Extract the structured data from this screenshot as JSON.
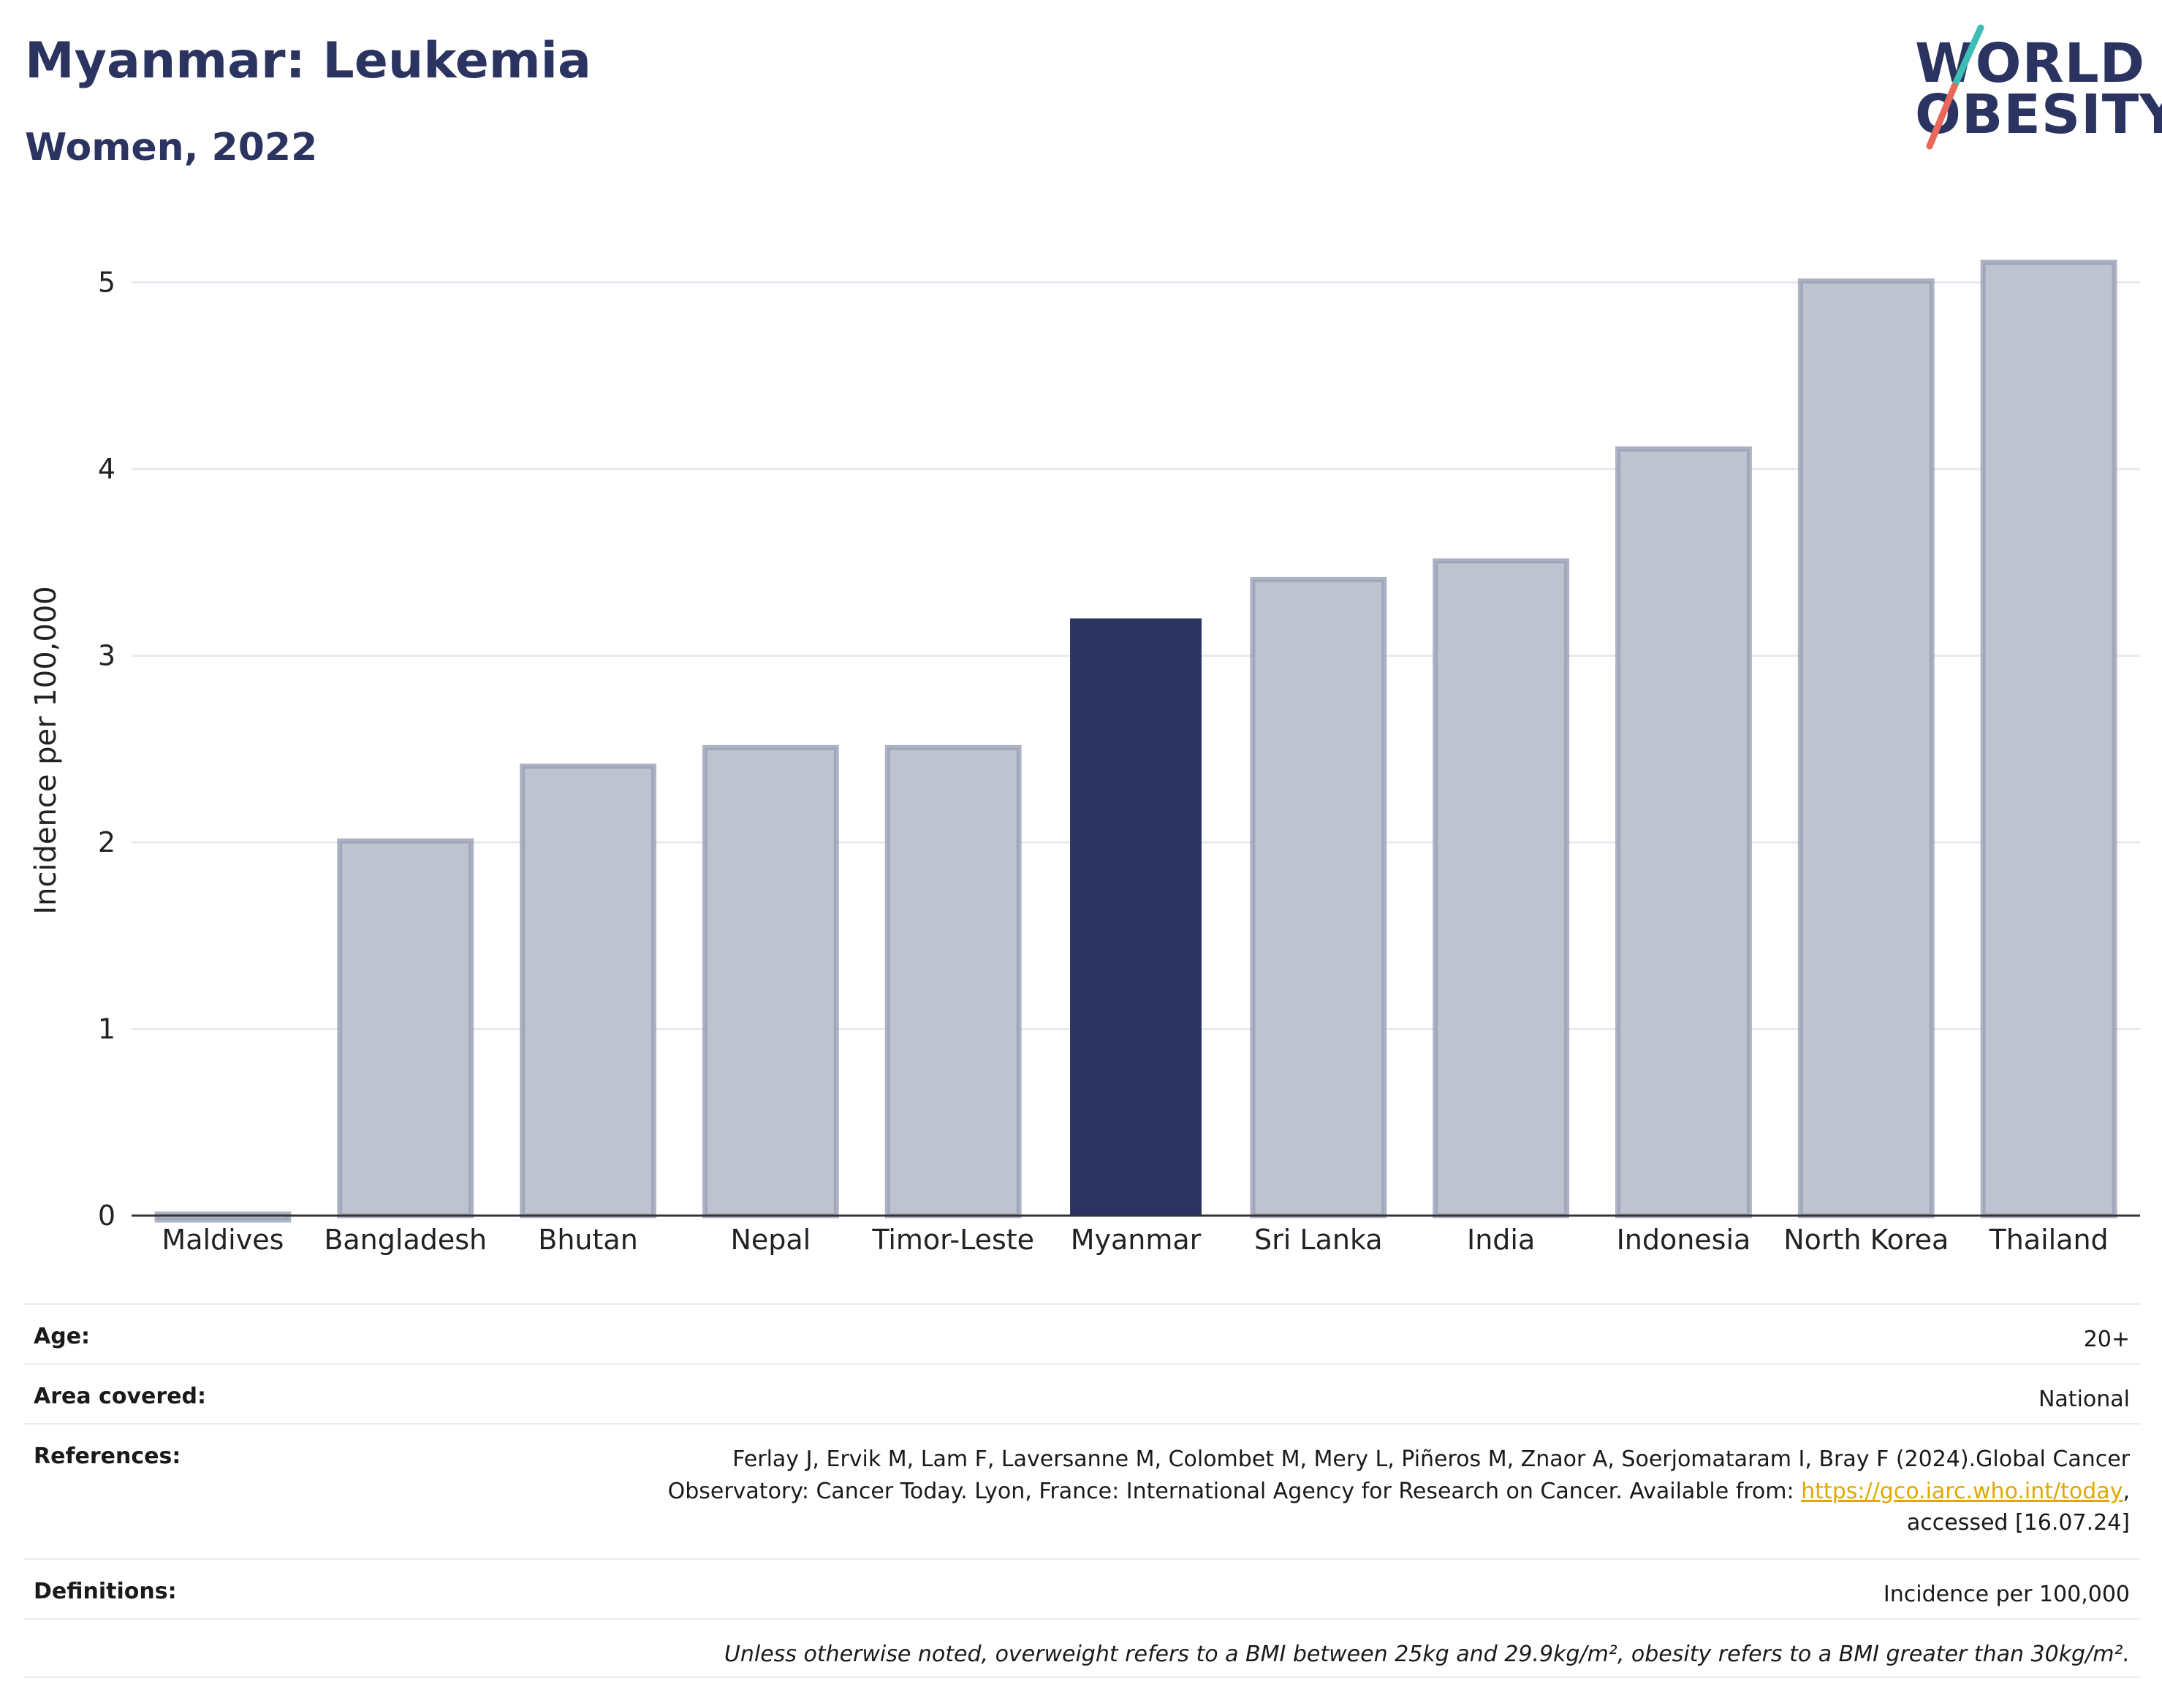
{
  "header": {
    "title": "Myanmar: Leukemia",
    "subtitle": "Women, 2022"
  },
  "logo": {
    "line1": "WORLD",
    "line2": "OBESITY",
    "text_color": "#2b3461",
    "slash_colors": [
      "#3dbdb5",
      "#e8695a"
    ]
  },
  "chart_data": {
    "type": "bar",
    "categories": [
      "Maldives",
      "Bangladesh",
      "Bhutan",
      "Nepal",
      "Timor-Leste",
      "Myanmar",
      "Sri Lanka",
      "India",
      "Indonesia",
      "North Korea",
      "Thailand"
    ],
    "values": [
      0.0,
      2.0,
      2.4,
      2.5,
      2.5,
      3.2,
      3.4,
      3.5,
      4.1,
      5.0,
      5.1
    ],
    "highlight": "Myanmar",
    "ylabel": "Incidence per 100,000",
    "yticks": [
      0,
      1,
      2,
      3,
      4,
      5
    ],
    "ylim": [
      0,
      5.3
    ],
    "grid": true,
    "colors": {
      "highlight": "#2b3461",
      "default_fill": "#bfc3cf",
      "default_stroke": "#9aa0b5",
      "grid": "#e6e9ef",
      "axis": "#333333"
    }
  },
  "meta": {
    "age_label": "Age:",
    "age_value": "20+",
    "area_label": "Area covered:",
    "area_value": "National",
    "refs_label": "References:",
    "refs_line1": "Ferlay J, Ervik M, Lam F, Laversanne M, Colombet M, Mery L, Piñeros M, Znaor A, Soerjomataram I, Bray F (2024).Global Cancer",
    "refs_line2_pre": "Observatory: Cancer Today. Lyon, France: International Agency for Research on Cancer. Available from: ",
    "refs_link": "https://gco.iarc.who.int/today",
    "refs_line2_post": ",",
    "refs_line3": "accessed [16.07.24]",
    "defs_label": "Definitions:",
    "defs_value": "Incidence per 100,000",
    "note": "Unless otherwise noted, overweight refers to a BMI between 25kg and 29.9kg/m², obesity refers to a BMI greater than 30kg/m²."
  }
}
